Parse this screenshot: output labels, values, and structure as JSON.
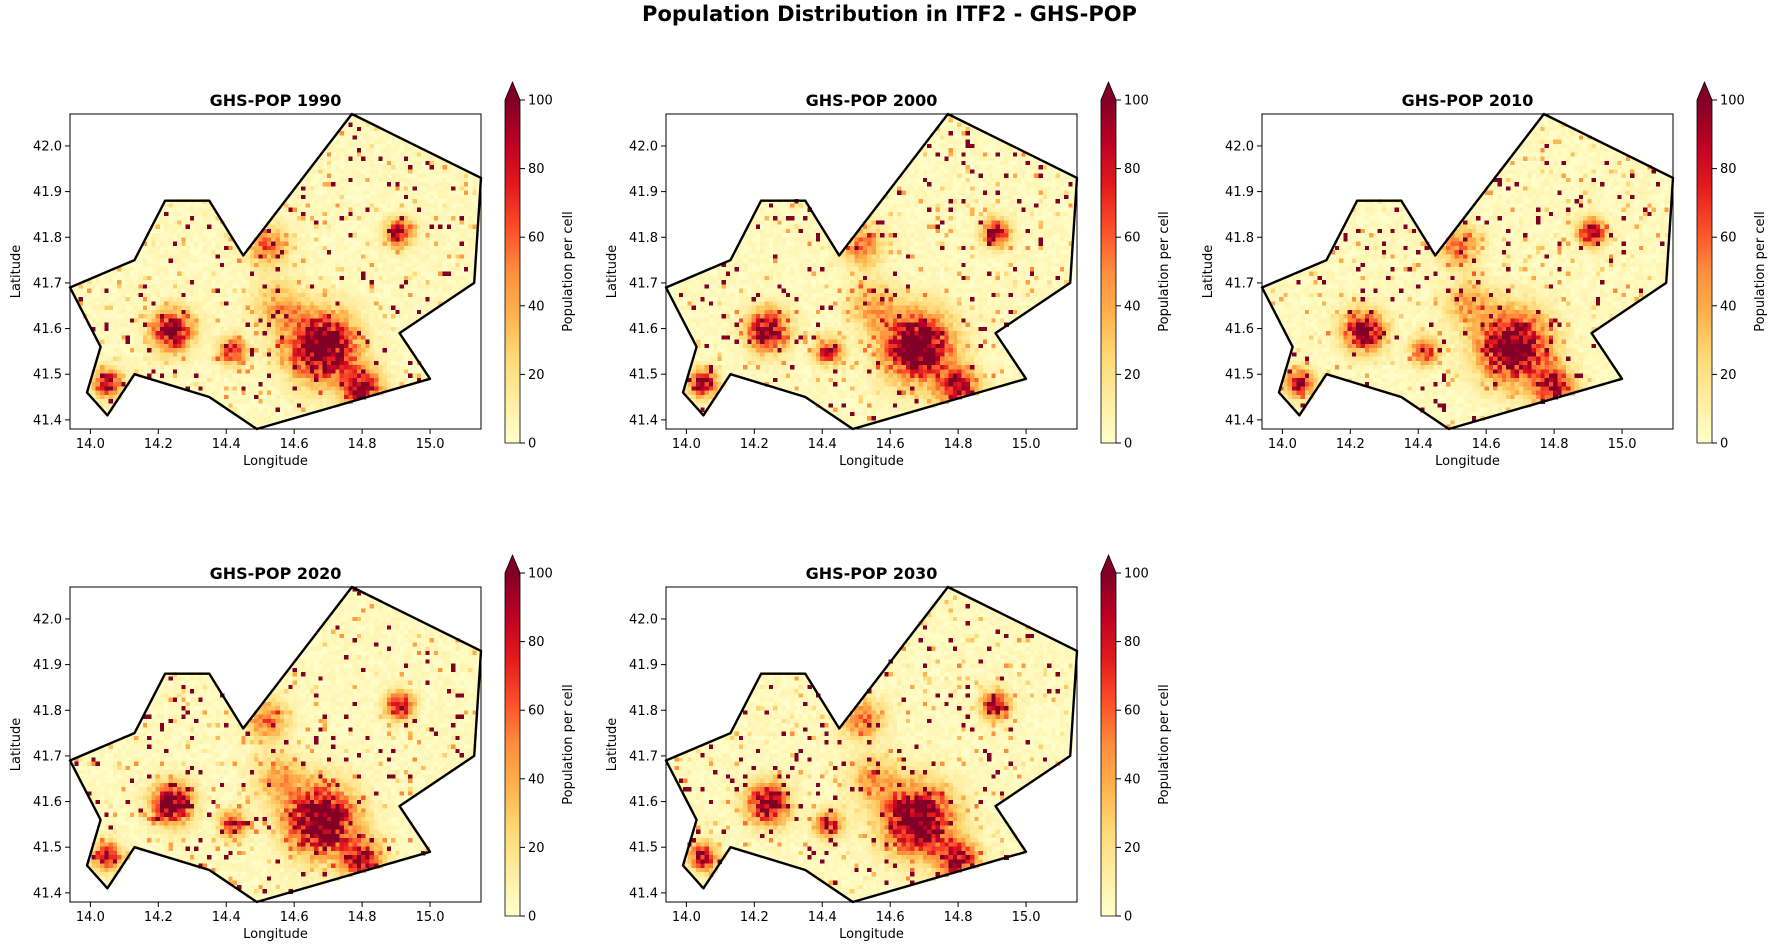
{
  "figure": {
    "title": "Population Distribution in ITF2 - GHS-POP"
  },
  "chart_data": [
    {
      "type": "heatmap",
      "title": "GHS-POP 1990",
      "xlabel": "Longitude",
      "ylabel": "Latitude",
      "xlim": [
        13.94,
        15.15
      ],
      "ylim": [
        41.38,
        42.07
      ],
      "xticks": [
        "14.0",
        "14.2",
        "14.4",
        "14.6",
        "14.8",
        "15.0"
      ],
      "yticks": [
        "41.4",
        "41.5",
        "41.6",
        "41.7",
        "41.8",
        "41.9",
        "42.0"
      ],
      "colorbar": {
        "label": "Population per cell",
        "vmin": 0,
        "vmax": 100,
        "ticks": [
          "0",
          "20",
          "40",
          "60",
          "80",
          "100"
        ],
        "extend": "max"
      },
      "seed": 11
    },
    {
      "type": "heatmap",
      "title": "GHS-POP 2000",
      "xlabel": "Longitude",
      "ylabel": "Latitude",
      "xlim": [
        13.94,
        15.15
      ],
      "ylim": [
        41.38,
        42.07
      ],
      "xticks": [
        "14.0",
        "14.2",
        "14.4",
        "14.6",
        "14.8",
        "15.0"
      ],
      "yticks": [
        "41.4",
        "41.5",
        "41.6",
        "41.7",
        "41.8",
        "41.9",
        "42.0"
      ],
      "colorbar": {
        "label": "Population per cell",
        "vmin": 0,
        "vmax": 100,
        "ticks": [
          "0",
          "20",
          "40",
          "60",
          "80",
          "100"
        ],
        "extend": "max"
      },
      "seed": 23
    },
    {
      "type": "heatmap",
      "title": "GHS-POP 2010",
      "xlabel": "Longitude",
      "ylabel": "Latitude",
      "xlim": [
        13.94,
        15.15
      ],
      "ylim": [
        41.38,
        42.07
      ],
      "xticks": [
        "14.0",
        "14.2",
        "14.4",
        "14.6",
        "14.8",
        "15.0"
      ],
      "yticks": [
        "41.4",
        "41.5",
        "41.6",
        "41.7",
        "41.8",
        "41.9",
        "42.0"
      ],
      "colorbar": {
        "label": "Population per cell",
        "vmin": 0,
        "vmax": 100,
        "ticks": [
          "0",
          "20",
          "40",
          "60",
          "80",
          "100"
        ],
        "extend": "max"
      },
      "seed": 37
    },
    {
      "type": "heatmap",
      "title": "GHS-POP 2020",
      "xlabel": "Longitude",
      "ylabel": "Latitude",
      "xlim": [
        13.94,
        15.15
      ],
      "ylim": [
        41.38,
        42.07
      ],
      "xticks": [
        "14.0",
        "14.2",
        "14.4",
        "14.6",
        "14.8",
        "15.0"
      ],
      "yticks": [
        "41.4",
        "41.5",
        "41.6",
        "41.7",
        "41.8",
        "41.9",
        "42.0"
      ],
      "colorbar": {
        "label": "Population per cell",
        "vmin": 0,
        "vmax": 100,
        "ticks": [
          "0",
          "20",
          "40",
          "60",
          "80",
          "100"
        ],
        "extend": "max"
      },
      "seed": 41
    },
    {
      "type": "heatmap",
      "title": "GHS-POP 2030",
      "xlabel": "Longitude",
      "ylabel": "Latitude",
      "xlim": [
        13.94,
        15.15
      ],
      "ylim": [
        41.38,
        42.07
      ],
      "xticks": [
        "14.0",
        "14.2",
        "14.4",
        "14.6",
        "14.8",
        "15.0"
      ],
      "yticks": [
        "41.4",
        "41.5",
        "41.6",
        "41.7",
        "41.8",
        "41.9",
        "42.0"
      ],
      "colorbar": {
        "label": "Population per cell",
        "vmin": 0,
        "vmax": 100,
        "ticks": [
          "0",
          "20",
          "40",
          "60",
          "80",
          "100"
        ],
        "extend": "max"
      },
      "seed": 53
    }
  ],
  "region_boundary": {
    "name": "ITF2",
    "lonlat": [
      [
        13.94,
        41.69
      ],
      [
        14.13,
        41.75
      ],
      [
        14.22,
        41.88
      ],
      [
        14.35,
        41.88
      ],
      [
        14.45,
        41.76
      ],
      [
        14.77,
        42.07
      ],
      [
        15.15,
        41.93
      ],
      [
        15.13,
        41.7
      ],
      [
        14.91,
        41.59
      ],
      [
        15.0,
        41.49
      ],
      [
        14.49,
        41.38
      ],
      [
        14.35,
        41.45
      ],
      [
        14.13,
        41.5
      ],
      [
        14.05,
        41.41
      ],
      [
        13.99,
        41.46
      ],
      [
        14.03,
        41.56
      ]
    ]
  },
  "hotspots": [
    {
      "lon": 14.68,
      "lat": 41.56,
      "radius": 0.05,
      "peak": 130
    },
    {
      "lon": 14.24,
      "lat": 41.595,
      "radius": 0.03,
      "peak": 110
    },
    {
      "lon": 14.05,
      "lat": 41.48,
      "radius": 0.02,
      "peak": 100
    },
    {
      "lon": 14.91,
      "lat": 41.81,
      "radius": 0.02,
      "peak": 100
    },
    {
      "lon": 14.52,
      "lat": 41.78,
      "radius": 0.03,
      "peak": 55
    },
    {
      "lon": 14.55,
      "lat": 41.65,
      "radius": 0.035,
      "peak": 40
    },
    {
      "lon": 14.8,
      "lat": 41.47,
      "radius": 0.03,
      "peak": 90
    },
    {
      "lon": 14.42,
      "lat": 41.55,
      "radius": 0.02,
      "peak": 80
    }
  ],
  "colors": {
    "cmap": [
      "#ffffcc",
      "#ffeda0",
      "#fed976",
      "#feb24c",
      "#fd8d3c",
      "#fc4e2a",
      "#e31a1c",
      "#bd0026",
      "#800026"
    ],
    "over": "#800026",
    "boundary": "#000000"
  }
}
